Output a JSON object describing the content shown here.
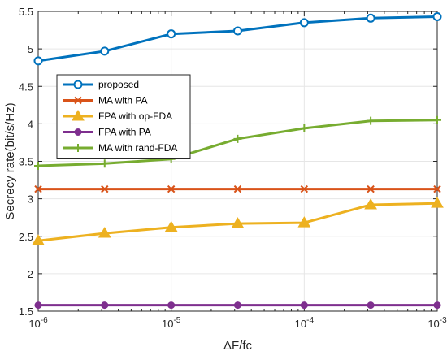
{
  "chart_data": {
    "type": "line",
    "xlabel": "ΔF/fc",
    "ylabel": "Secrecy rate(bit/s/Hz)",
    "x_scale": "log",
    "x": [
      1e-06,
      3.16e-06,
      1e-05,
      3.16e-05,
      0.0001,
      0.000316,
      0.001
    ],
    "xlim": [
      1e-06,
      0.001
    ],
    "ylim": [
      1.5,
      5.5
    ],
    "x_ticks": [
      {
        "base": "10",
        "exp": "-6",
        "value": 1e-06
      },
      {
        "base": "10",
        "exp": "-5",
        "value": 1e-05
      },
      {
        "base": "10",
        "exp": "-4",
        "value": 0.0001
      },
      {
        "base": "10",
        "exp": "-3",
        "value": 0.001
      }
    ],
    "y_ticks": [
      "1.5",
      "2",
      "2.5",
      "3",
      "3.5",
      "4",
      "4.5",
      "5",
      "5.5"
    ],
    "grid": true,
    "legend_position": "upper-left",
    "series": [
      {
        "name": "proposed",
        "color": "#0072BD",
        "marker": "circle-open",
        "values": [
          4.84,
          4.97,
          5.2,
          5.24,
          5.35,
          5.41,
          5.43
        ]
      },
      {
        "name": "MA with PA",
        "color": "#D95319",
        "marker": "x",
        "values": [
          3.13,
          3.13,
          3.13,
          3.13,
          3.13,
          3.13,
          3.13
        ]
      },
      {
        "name": "FPA with op-FDA",
        "color": "#EDB120",
        "marker": "triangle-filled",
        "values": [
          2.44,
          2.54,
          2.62,
          2.67,
          2.68,
          2.92,
          2.94
        ]
      },
      {
        "name": "FPA with PA",
        "color": "#7E2F8E",
        "marker": "circle-filled",
        "values": [
          1.58,
          1.58,
          1.58,
          1.58,
          1.58,
          1.58,
          1.58
        ]
      },
      {
        "name": "MA with rand-FDA",
        "color": "#77AC30",
        "marker": "plus",
        "values": [
          3.44,
          3.47,
          3.53,
          3.8,
          3.94,
          4.04,
          4.05
        ]
      }
    ]
  }
}
